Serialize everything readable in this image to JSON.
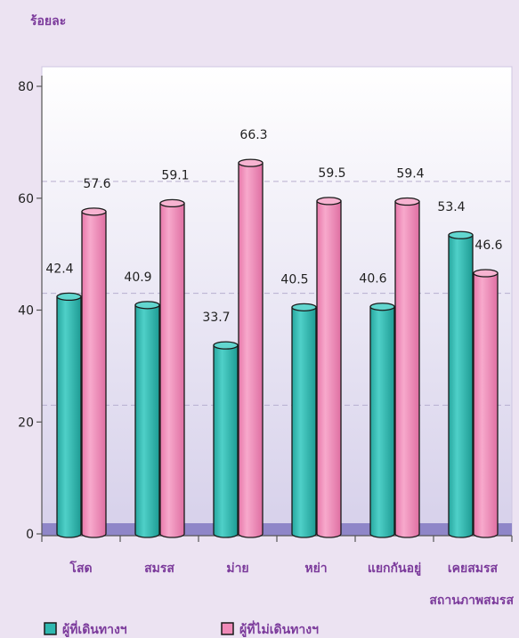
{
  "chart_data": {
    "type": "bar",
    "ylabel": "ร้อยละ",
    "xlabel": "สถานภาพสมรส",
    "ylim": [
      0,
      80
    ],
    "yticks": [
      0,
      20,
      40,
      60,
      80
    ],
    "grid": "dashed horizontal",
    "legend_position": "bottom",
    "categories": [
      "โสด",
      "สมรส",
      "ม่าย",
      "หย่า",
      "แยกกันอยู่",
      "เคยสมรส"
    ],
    "series": [
      {
        "name": "ผู้ที่เดินทางฯ",
        "values": [
          42.4,
          40.9,
          33.7,
          40.5,
          40.6,
          53.4
        ],
        "color": "#2fb8b0"
      },
      {
        "name": "ผู้ที่ไม่เดินทางฯ",
        "values": [
          57.6,
          59.1,
          66.3,
          59.5,
          59.4,
          46.6
        ],
        "color": "#f08ab8"
      }
    ]
  },
  "colors": {
    "background": "#ece3f2",
    "floor": "#8f86c8",
    "axis_text": "#7b3a9b"
  }
}
